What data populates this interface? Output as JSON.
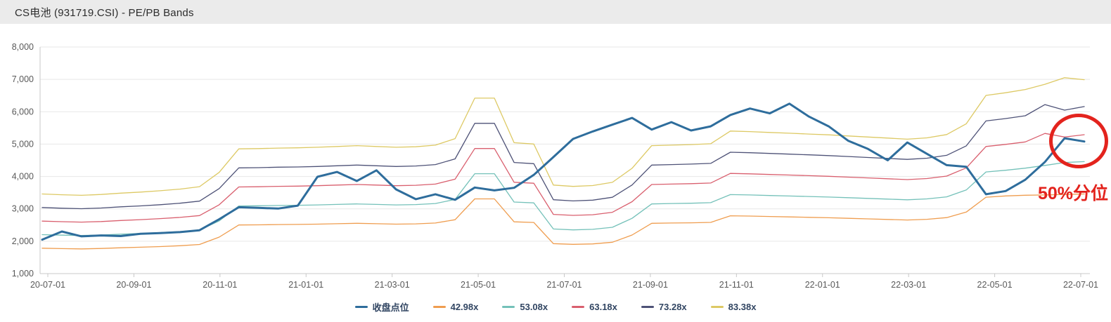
{
  "title_bar": {
    "title": "CS电池 (931719.CSI) - PE/PB Bands"
  },
  "annotation": {
    "label": "50%分位",
    "color": "#e3231d"
  },
  "colors": {
    "close": "#2e6d9c",
    "band_42": "#ef9d4f",
    "band_53": "#74c1b9",
    "band_63": "#d95f6e",
    "band_73": "#4e5277",
    "band_83": "#ddc964",
    "grid": "#e7e7e7",
    "axis": "#c8c8c8",
    "tick_text": "#595959"
  },
  "legend": [
    {
      "label": "收盘点位",
      "color": "#2e6d9c"
    },
    {
      "label": "42.98x",
      "color": "#ef9d4f"
    },
    {
      "label": "53.08x",
      "color": "#74c1b9"
    },
    {
      "label": "63.18x",
      "color": "#d95f6e"
    },
    {
      "label": "73.28x",
      "color": "#4e5277"
    },
    {
      "label": "83.38x",
      "color": "#ddc964"
    }
  ],
  "chart_data": {
    "type": "line",
    "title": "CS电池 (931719.CSI) - PE/PB Bands",
    "x_unit": "biweekly samples, 2020-07-01 to 2022-07-01",
    "x_tick_labels": [
      "20-07-01",
      "20-09-01",
      "20-11-01",
      "21-01-01",
      "21-03-01",
      "21-05-01",
      "21-07-01",
      "21-09-01",
      "21-11-01",
      "22-01-01",
      "22-03-01",
      "22-05-01",
      "22-07-01"
    ],
    "y_ticks": [
      1000,
      2000,
      3000,
      4000,
      5000,
      6000,
      7000,
      8000
    ],
    "y_tick_labels": [
      "1,000",
      "2,000",
      "3,000",
      "4,000",
      "5,000",
      "6,000",
      "7,000",
      "8,000"
    ],
    "ylim": [
      1000,
      8000
    ],
    "grid": true,
    "legend_position": "bottom-center",
    "series": [
      {
        "name": "收盘点位",
        "color": "#2e6d9c",
        "width": 3,
        "values": [
          2050,
          2300,
          2150,
          2180,
          2160,
          2230,
          2250,
          2280,
          2340,
          2680,
          3050,
          3030,
          3010,
          3100,
          3990,
          4140,
          3860,
          4190,
          3600,
          3300,
          3450,
          3280,
          3660,
          3570,
          3650,
          4050,
          4600,
          5160,
          5390,
          5600,
          5810,
          5450,
          5680,
          5420,
          5550,
          5900,
          6100,
          5950,
          6250,
          5850,
          5550,
          5100,
          4850,
          4500,
          5050,
          4700,
          4350,
          4300,
          3450,
          3550,
          3900,
          4450,
          5180,
          5080
        ]
      },
      {
        "name": "42.98x",
        "color": "#ef9d4f",
        "width": 1.3,
        "values": [
          1784,
          1771,
          1762,
          1775,
          1797,
          1814,
          1835,
          1861,
          1900,
          2128,
          2501,
          2506,
          2514,
          2519,
          2527,
          2540,
          2553,
          2540,
          2527,
          2536,
          2562,
          2665,
          3309,
          3309,
          2600,
          2579,
          1926,
          1904,
          1917,
          1968,
          2192,
          2553,
          2562,
          2570,
          2583,
          2785,
          2777,
          2764,
          2751,
          2738,
          2725,
          2708,
          2691,
          2673,
          2656,
          2678,
          2729,
          2900,
          3360,
          3400,
          3420,
          3430,
          3445,
          3460
        ]
      },
      {
        "name": "53.08x",
        "color": "#74c1b9",
        "width": 1.3,
        "values": [
          2203,
          2187,
          2176,
          2192,
          2219,
          2240,
          2267,
          2298,
          2346,
          2627,
          3089,
          3095,
          3105,
          3111,
          3121,
          3137,
          3153,
          3137,
          3121,
          3132,
          3164,
          3291,
          4087,
          4087,
          3211,
          3185,
          2378,
          2351,
          2367,
          2431,
          2707,
          3153,
          3164,
          3174,
          3190,
          3440,
          3429,
          3413,
          3397,
          3381,
          3365,
          3344,
          3323,
          3302,
          3280,
          3307,
          3371,
          3583,
          4140,
          4193,
          4257,
          4342,
          4432,
          4459
        ]
      },
      {
        "name": "63.18x",
        "color": "#d95f6e",
        "width": 1.3,
        "values": [
          2622,
          2603,
          2590,
          2609,
          2641,
          2666,
          2698,
          2736,
          2793,
          3127,
          3677,
          3683,
          3696,
          3702,
          3715,
          3734,
          3753,
          3734,
          3715,
          3728,
          3766,
          3917,
          4865,
          4865,
          3822,
          3791,
          2830,
          2799,
          2818,
          2894,
          3222,
          3753,
          3766,
          3778,
          3797,
          4094,
          4081,
          4062,
          4044,
          4025,
          4006,
          3980,
          3955,
          3930,
          3905,
          3936,
          4012,
          4265,
          4928,
          4991,
          5067,
          5330,
          5220,
          5290
        ]
      },
      {
        "name": "73.28x",
        "color": "#4e5277",
        "width": 1.3,
        "values": [
          3041,
          3019,
          3004,
          3026,
          3063,
          3092,
          3129,
          3173,
          3239,
          3627,
          4265,
          4272,
          4287,
          4294,
          4309,
          4331,
          4353,
          4331,
          4309,
          4324,
          4368,
          4543,
          5643,
          5643,
          4433,
          4397,
          3283,
          3246,
          3268,
          3357,
          3737,
          4353,
          4368,
          4382,
          4404,
          4749,
          4734,
          4712,
          4690,
          4668,
          4646,
          4617,
          4587,
          4558,
          4529,
          4565,
          4653,
          4947,
          5716,
          5789,
          5877,
          6220,
          6050,
          6160
        ]
      },
      {
        "name": "83.38x",
        "color": "#ddc964",
        "width": 1.3,
        "values": [
          3460,
          3435,
          3419,
          3444,
          3485,
          3519,
          3560,
          3610,
          3685,
          4127,
          4853,
          4861,
          4878,
          4886,
          4903,
          4928,
          4953,
          4928,
          4903,
          4919,
          4969,
          5170,
          6420,
          6420,
          5044,
          5003,
          3735,
          3694,
          3719,
          3819,
          4252,
          4953,
          4969,
          4986,
          5011,
          5403,
          5386,
          5361,
          5336,
          5311,
          5286,
          5253,
          5220,
          5186,
          5153,
          5194,
          5295,
          5630,
          6504,
          6587,
          6687,
          6850,
          7050,
          6990
        ]
      }
    ]
  }
}
